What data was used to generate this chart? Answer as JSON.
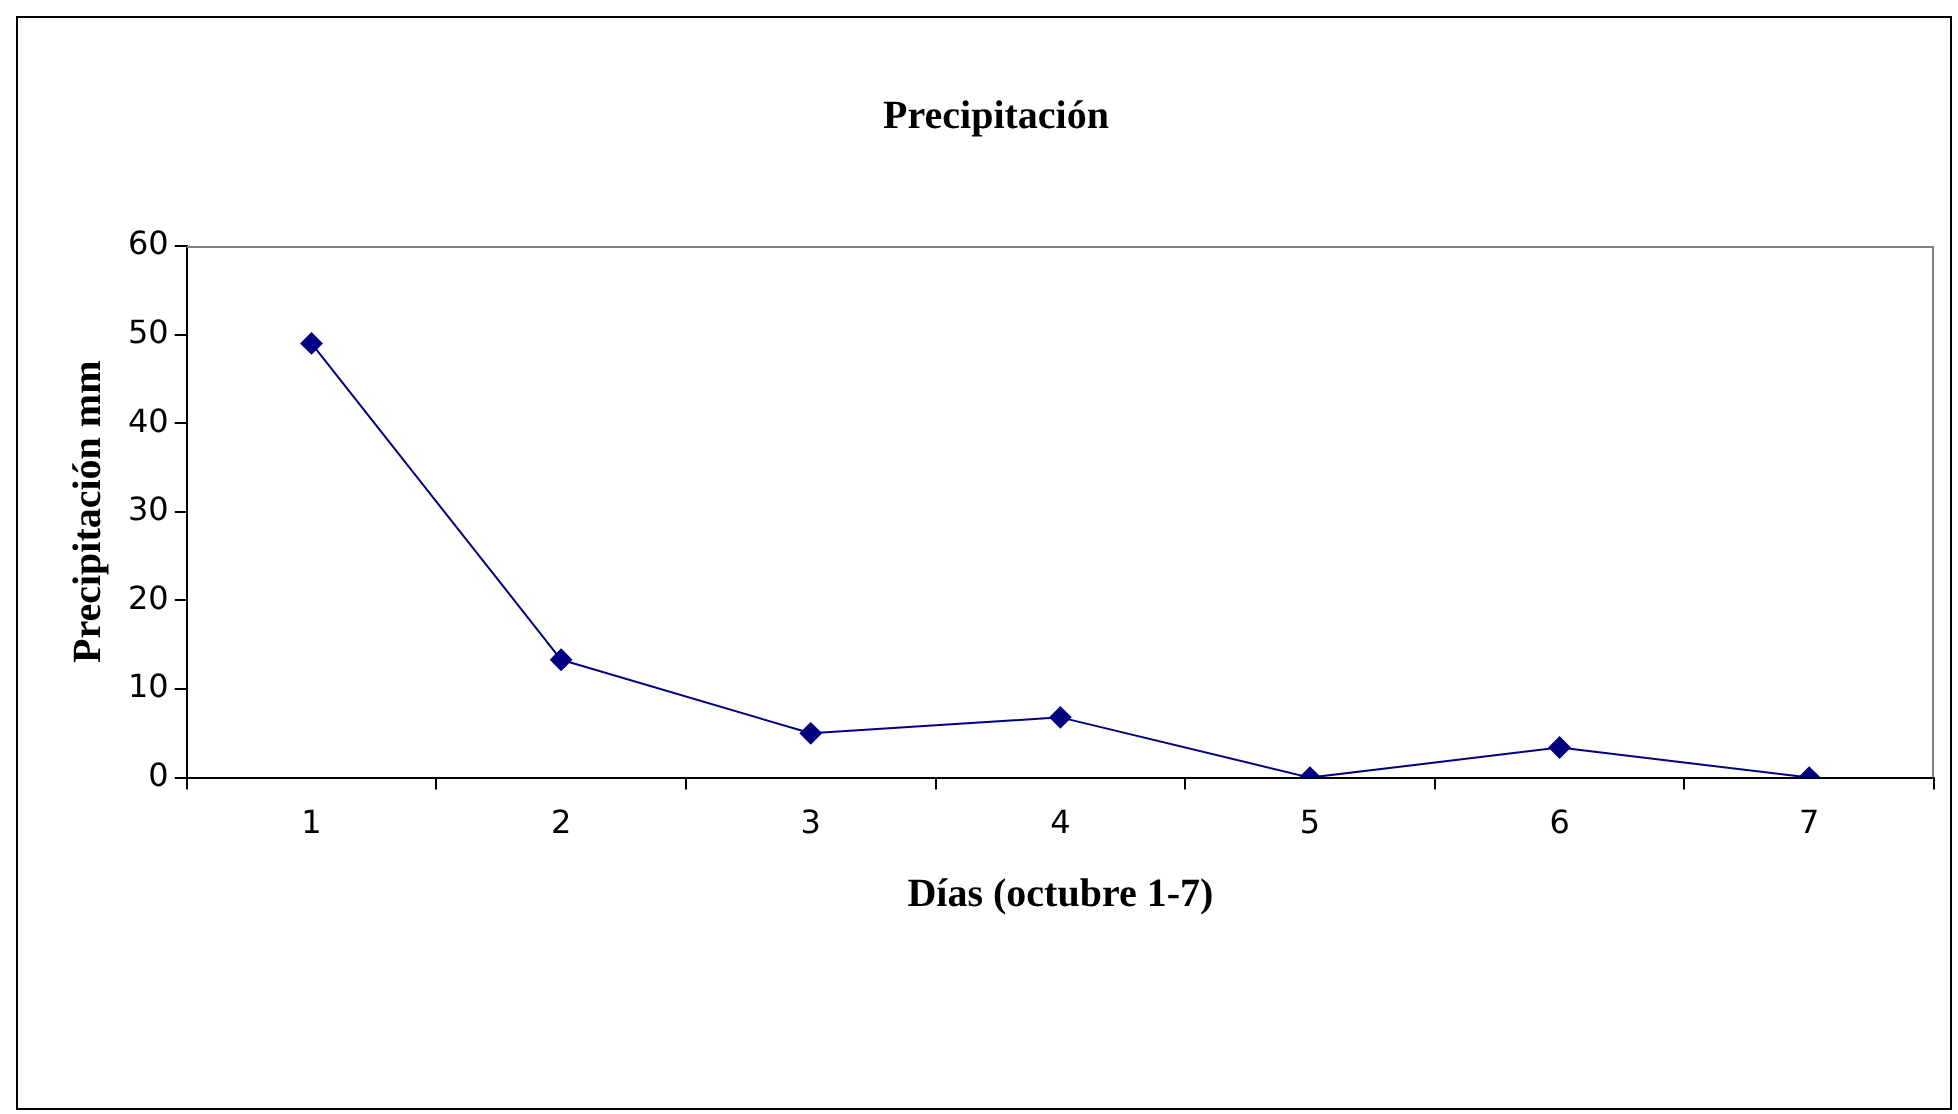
{
  "chart_data": {
    "type": "line",
    "title": "Precipitación",
    "xlabel": "Días (octubre 1-7)",
    "ylabel": "Precipitación mm",
    "categories": [
      "1",
      "2",
      "3",
      "4",
      "5",
      "6",
      "7"
    ],
    "series": [
      {
        "color": "#000080",
        "values": [
          49,
          13.3,
          5,
          6.8,
          0,
          3.4,
          0
        ]
      }
    ],
    "ylim": [
      0,
      60
    ],
    "yticks": [
      0,
      10,
      20,
      30,
      40,
      50,
      60
    ],
    "grid": false,
    "legend": false,
    "marker": "diamond",
    "line_style": "solid"
  }
}
